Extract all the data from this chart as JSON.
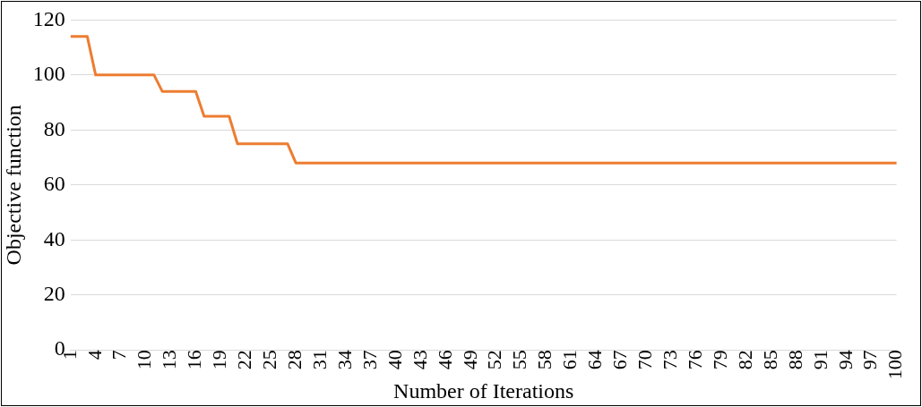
{
  "chart_data": {
    "type": "line",
    "xlabel": "Number of Iterations",
    "ylabel": "Objective function",
    "x": [
      1,
      2,
      3,
      4,
      5,
      6,
      7,
      8,
      9,
      10,
      11,
      12,
      13,
      14,
      15,
      16,
      17,
      18,
      19,
      20,
      21,
      22,
      23,
      24,
      25,
      26,
      27,
      28,
      29,
      30,
      31,
      32,
      33,
      34,
      35,
      36,
      37,
      38,
      39,
      40,
      41,
      42,
      43,
      44,
      45,
      46,
      47,
      48,
      49,
      50,
      51,
      52,
      53,
      54,
      55,
      56,
      57,
      58,
      59,
      60,
      61,
      62,
      63,
      64,
      65,
      66,
      67,
      68,
      69,
      70,
      71,
      72,
      73,
      74,
      75,
      76,
      77,
      78,
      79,
      80,
      81,
      82,
      83,
      84,
      85,
      86,
      87,
      88,
      89,
      90,
      91,
      92,
      93,
      94,
      95,
      96,
      97,
      98,
      99,
      100
    ],
    "series": [
      {
        "color": "#ed7d31",
        "values": [
          114,
          114,
          114,
          100,
          100,
          100,
          100,
          100,
          100,
          100,
          100,
          94,
          94,
          94,
          94,
          94,
          85,
          85,
          85,
          85,
          75,
          75,
          75,
          75,
          75,
          75,
          75,
          68,
          68,
          68,
          68,
          68,
          68,
          68,
          68,
          68,
          68,
          68,
          68,
          68,
          68,
          68,
          68,
          68,
          68,
          68,
          68,
          68,
          68,
          68,
          68,
          68,
          68,
          68,
          68,
          68,
          68,
          68,
          68,
          68,
          68,
          68,
          68,
          68,
          68,
          68,
          68,
          68,
          68,
          68,
          68,
          68,
          68,
          68,
          68,
          68,
          68,
          68,
          68,
          68,
          68,
          68,
          68,
          68,
          68,
          68,
          68,
          68,
          68,
          68,
          68,
          68,
          68,
          68,
          68,
          68,
          68,
          68,
          68,
          68
        ]
      }
    ],
    "xlim": [
      1,
      100
    ],
    "xticks": [
      1,
      4,
      7,
      10,
      13,
      16,
      19,
      22,
      25,
      28,
      31,
      34,
      37,
      40,
      43,
      46,
      49,
      52,
      55,
      58,
      61,
      64,
      67,
      70,
      73,
      76,
      79,
      82,
      85,
      88,
      91,
      94,
      97,
      100
    ],
    "ylim": [
      0,
      120
    ],
    "yticks": [
      0,
      20,
      40,
      60,
      80,
      100,
      120
    ],
    "grid": "y",
    "legend": false,
    "marker": "none",
    "line_style": "solid"
  }
}
